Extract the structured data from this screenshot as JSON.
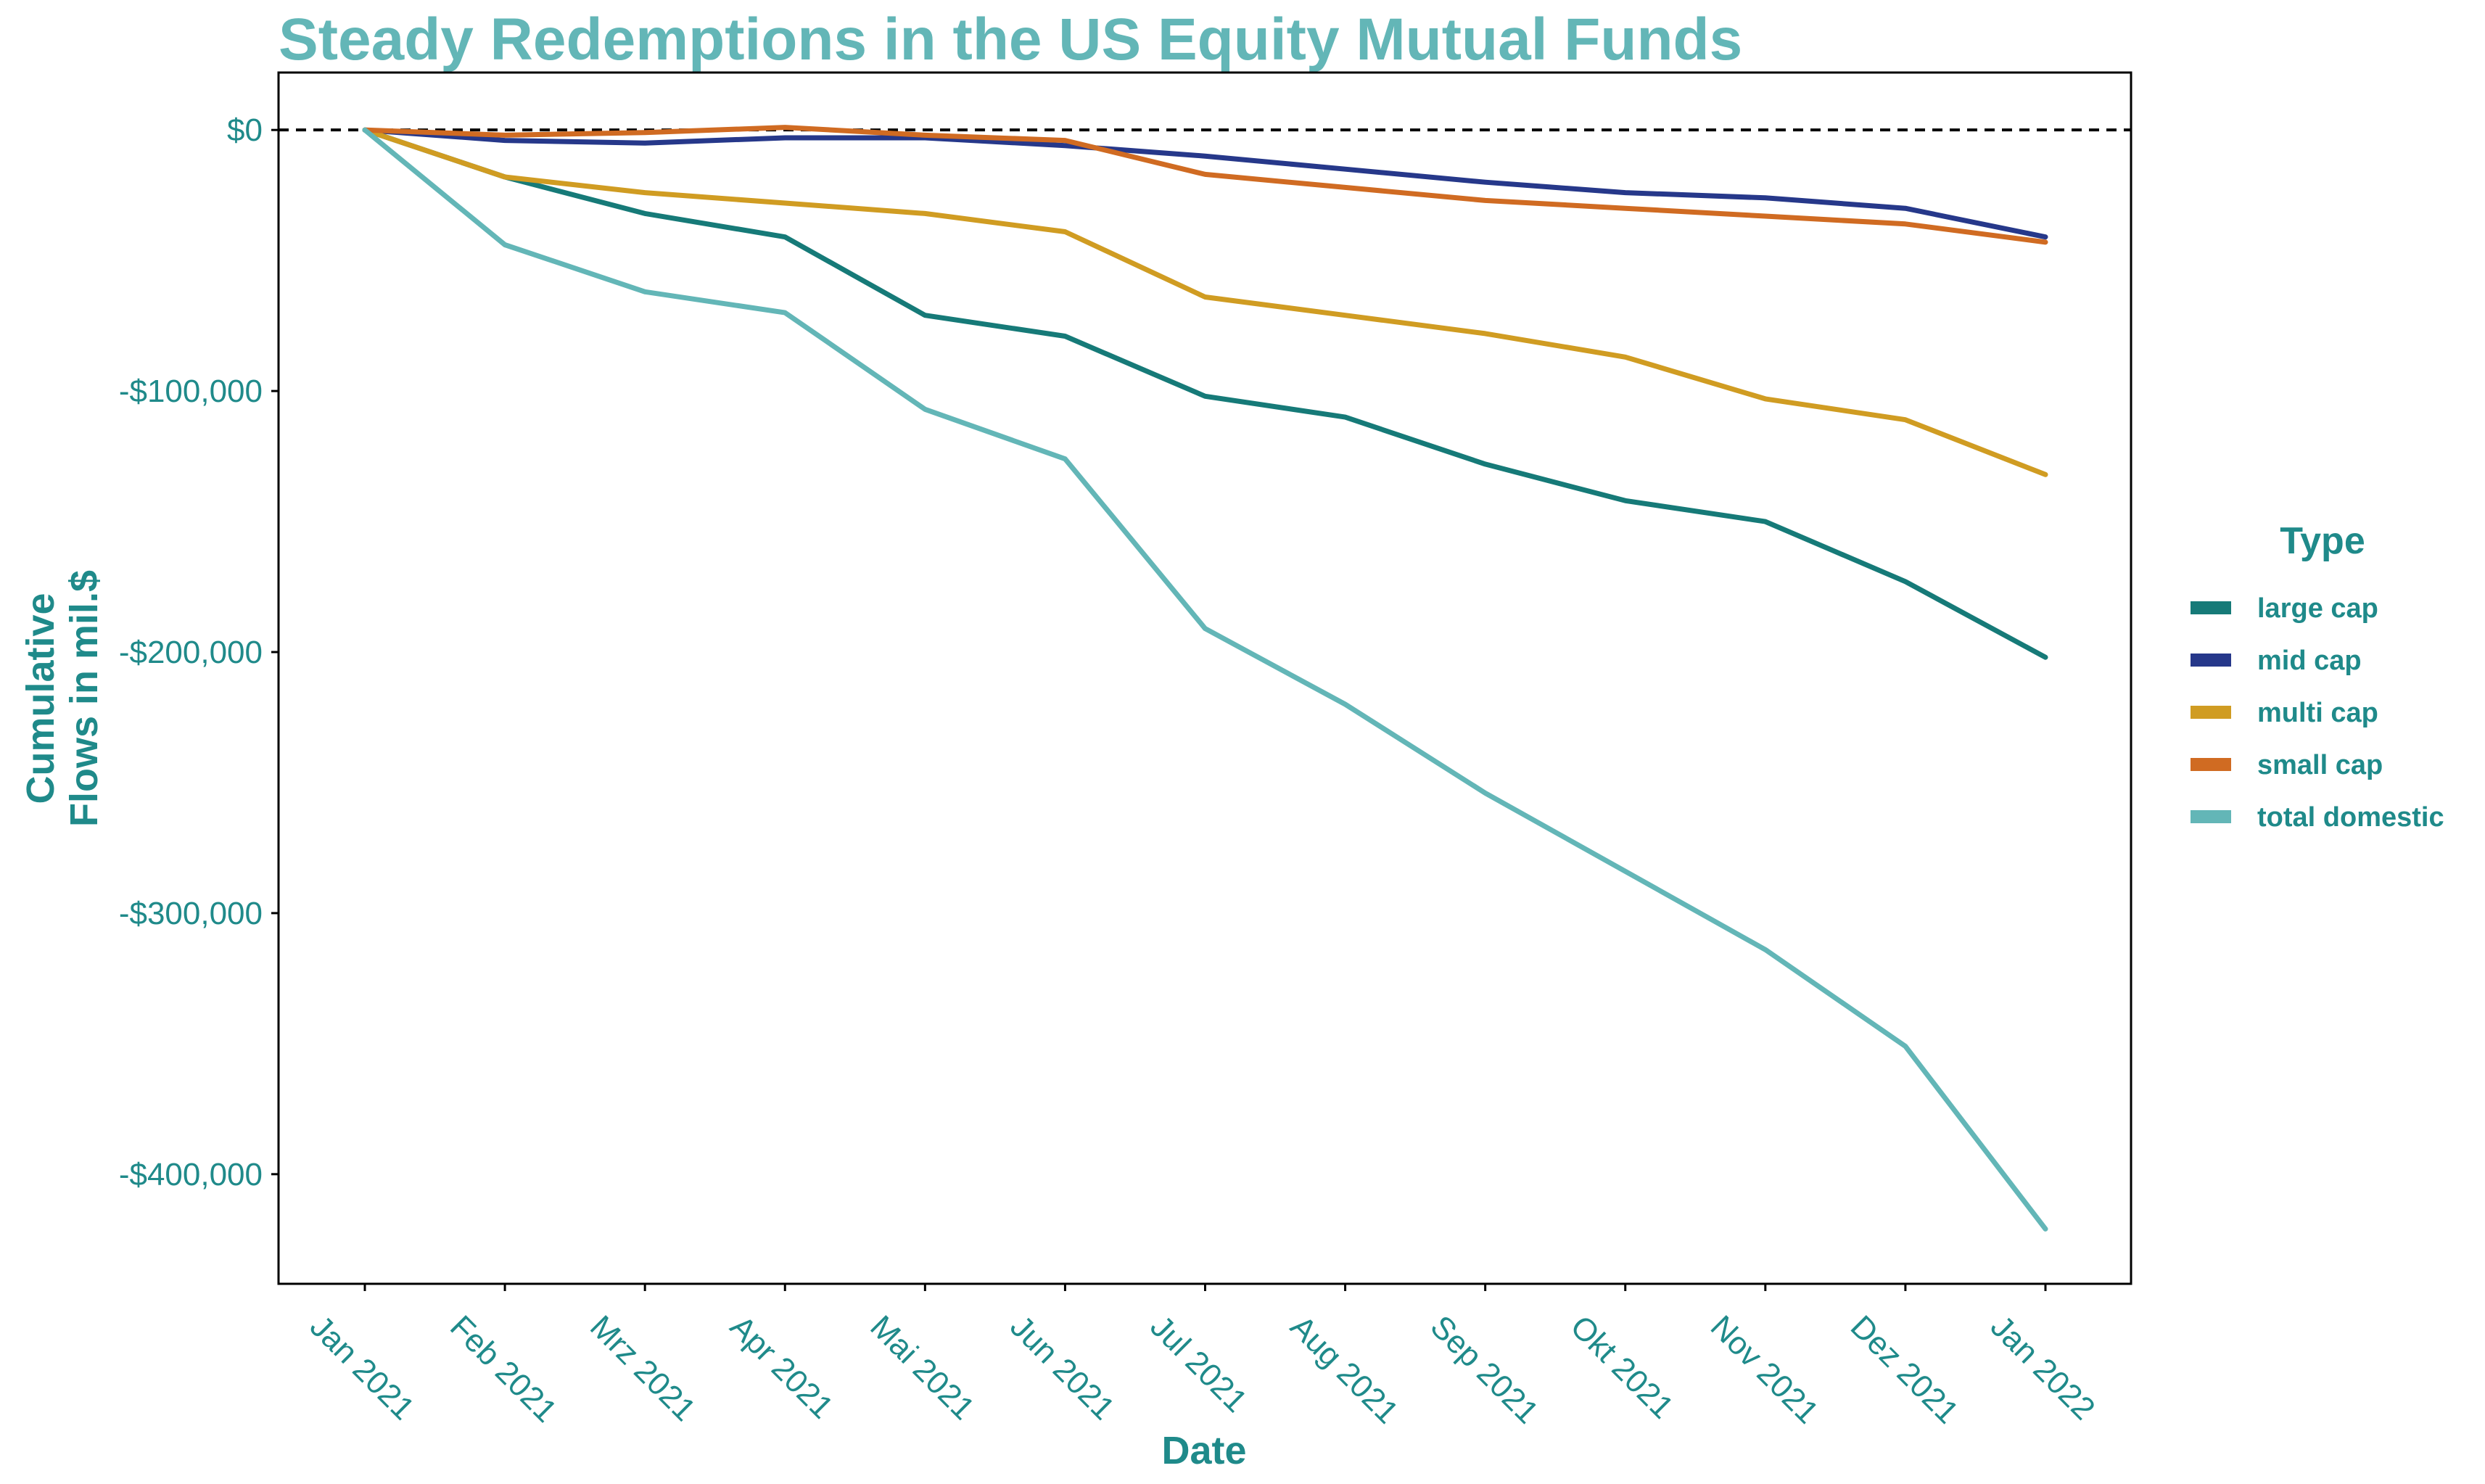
{
  "colors": {
    "title": "#63b6b7",
    "axis_text": "#1f8a8a",
    "axis_line": "#000000",
    "zero_line": "#000000"
  },
  "chart_data": {
    "type": "line",
    "title": "Steady Redemptions in the US Equity Mutual Funds",
    "xlabel": "Date",
    "ylabel_lines": [
      "Cumulative",
      "Flows in mil.$"
    ],
    "x": [
      "Jan 2021",
      "Feb 2021",
      "Mrz 2021",
      "Apr 2021",
      "Mai 2021",
      "Jun 2021",
      "Jul 2021",
      "Aug 2021",
      "Sep 2021",
      "Okt 2021",
      "Nov 2021",
      "Dez 2021",
      "Jan 2022"
    ],
    "ylim": [
      -442000,
      22000
    ],
    "yticks": [
      0,
      -100000,
      -200000,
      -300000,
      -400000
    ],
    "ytick_labels": [
      "$0",
      "-$100,000",
      "-$200,000",
      "-$300,000",
      "-$400,000"
    ],
    "reference_line": 0,
    "grid": false,
    "legend": {
      "title": "Type",
      "position": "right"
    },
    "series": [
      {
        "name": "large cap",
        "color": "#167a78",
        "values": [
          0,
          -18000,
          -32000,
          -41000,
          -71000,
          -79000,
          -102000,
          -110000,
          -128000,
          -142000,
          -150000,
          -173000,
          -202000
        ]
      },
      {
        "name": "mid cap",
        "color": "#26388a",
        "values": [
          0,
          -4000,
          -5000,
          -3000,
          -3000,
          -6000,
          -10000,
          -15000,
          -20000,
          -24000,
          -26000,
          -30000,
          -41000
        ]
      },
      {
        "name": "multi cap",
        "color": "#d09c22",
        "values": [
          0,
          -18000,
          -24000,
          -28000,
          -32000,
          -39000,
          -64000,
          -71000,
          -78000,
          -87000,
          -103000,
          -111000,
          -132000
        ]
      },
      {
        "name": "small cap",
        "color": "#d06b22",
        "values": [
          0,
          -2000,
          -1000,
          1000,
          -2000,
          -4000,
          -17000,
          -22000,
          -27000,
          -30000,
          -33000,
          -36000,
          -43000
        ]
      },
      {
        "name": "total domestic",
        "color": "#63b6b7",
        "values": [
          0,
          -44000,
          -62000,
          -70000,
          -107000,
          -126000,
          -191000,
          -220000,
          -254000,
          -284000,
          -314000,
          -351000,
          -421000
        ]
      }
    ]
  }
}
